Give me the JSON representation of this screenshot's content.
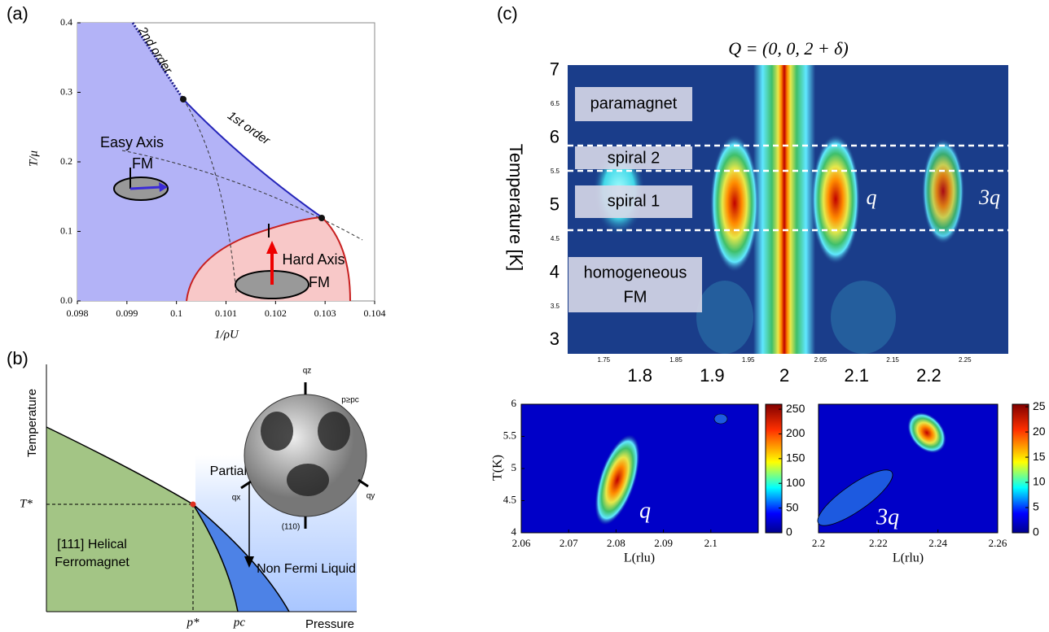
{
  "panel_labels": [
    "(a)",
    "(b)",
    "(c)"
  ],
  "panel_a": {
    "x_label": "1/ρU",
    "y_label": "T/μ",
    "xlim": [
      0.098,
      0.104
    ],
    "ylim": [
      0,
      0.4
    ],
    "xticks": [
      0.098,
      0.099,
      0.1,
      0.101,
      0.102,
      0.103,
      0.104
    ],
    "yticks": [
      {
        "value": 0,
        "label": "0.0"
      },
      0.1,
      0.2,
      0.3,
      0.4
    ],
    "annotations": [
      "2nd order",
      "1st order",
      "Easy Axis",
      "FM",
      "Hard Axis",
      "FM"
    ]
  },
  "panel_b": {
    "x_label": "Pressure",
    "y_label": "Temperature",
    "annotations": [
      "T*",
      "p*",
      "pc",
      "[111] Helical",
      "Ferromagnet",
      "Partial Order",
      "Non Fermi Liquid"
    ],
    "sphere_labels": [
      "qz",
      "qx",
      "qy",
      "(110)",
      "p≥pc"
    ]
  },
  "panel_c": {
    "title": "Q = (0, 0, 2 + δ)",
    "y_label": "Temperature [K]",
    "xlim": [
      1.7,
      2.31
    ],
    "ylim": [
      2.8,
      7.08
    ],
    "xticks_major": [
      1.8,
      1.9,
      2,
      2.1,
      2.2
    ],
    "xticks_minor": [
      1.75,
      1.85,
      1.95,
      2.05,
      2.15,
      2.25
    ],
    "yticks_major": [
      3,
      4,
      5,
      6,
      7
    ],
    "yticks_minor": [
      3.5,
      4.5,
      5.5,
      6.5
    ],
    "phases": [
      "paramagnet",
      "spiral 2",
      "spiral 1",
      "homogeneous",
      "FM"
    ],
    "peak_labels": [
      "q",
      "3q"
    ]
  },
  "panel_c_left": {
    "x_label": "L(rlu)",
    "y_label": "T(K)",
    "peak_label": "q",
    "xlim": [
      2.06,
      2.11
    ],
    "ylim": [
      4,
      6
    ],
    "xticks": [
      2.06,
      2.07,
      2.08,
      2.09,
      2.1
    ],
    "yticks": [
      4,
      4.5,
      5,
      5.5,
      6
    ],
    "clim": [
      0,
      260
    ],
    "cticks": [
      0,
      50,
      100,
      150,
      200,
      250
    ]
  },
  "panel_c_right": {
    "x_label": "L(rlu)",
    "peak_label": "3q",
    "xlim": [
      2.2,
      2.26
    ],
    "ylim": [
      4,
      6
    ],
    "xticks": [
      2.2,
      2.22,
      2.24,
      2.26
    ],
    "yticks": [],
    "clim": [
      0,
      25.5
    ],
    "cticks": [
      0,
      5,
      10,
      15,
      20,
      25
    ]
  }
}
